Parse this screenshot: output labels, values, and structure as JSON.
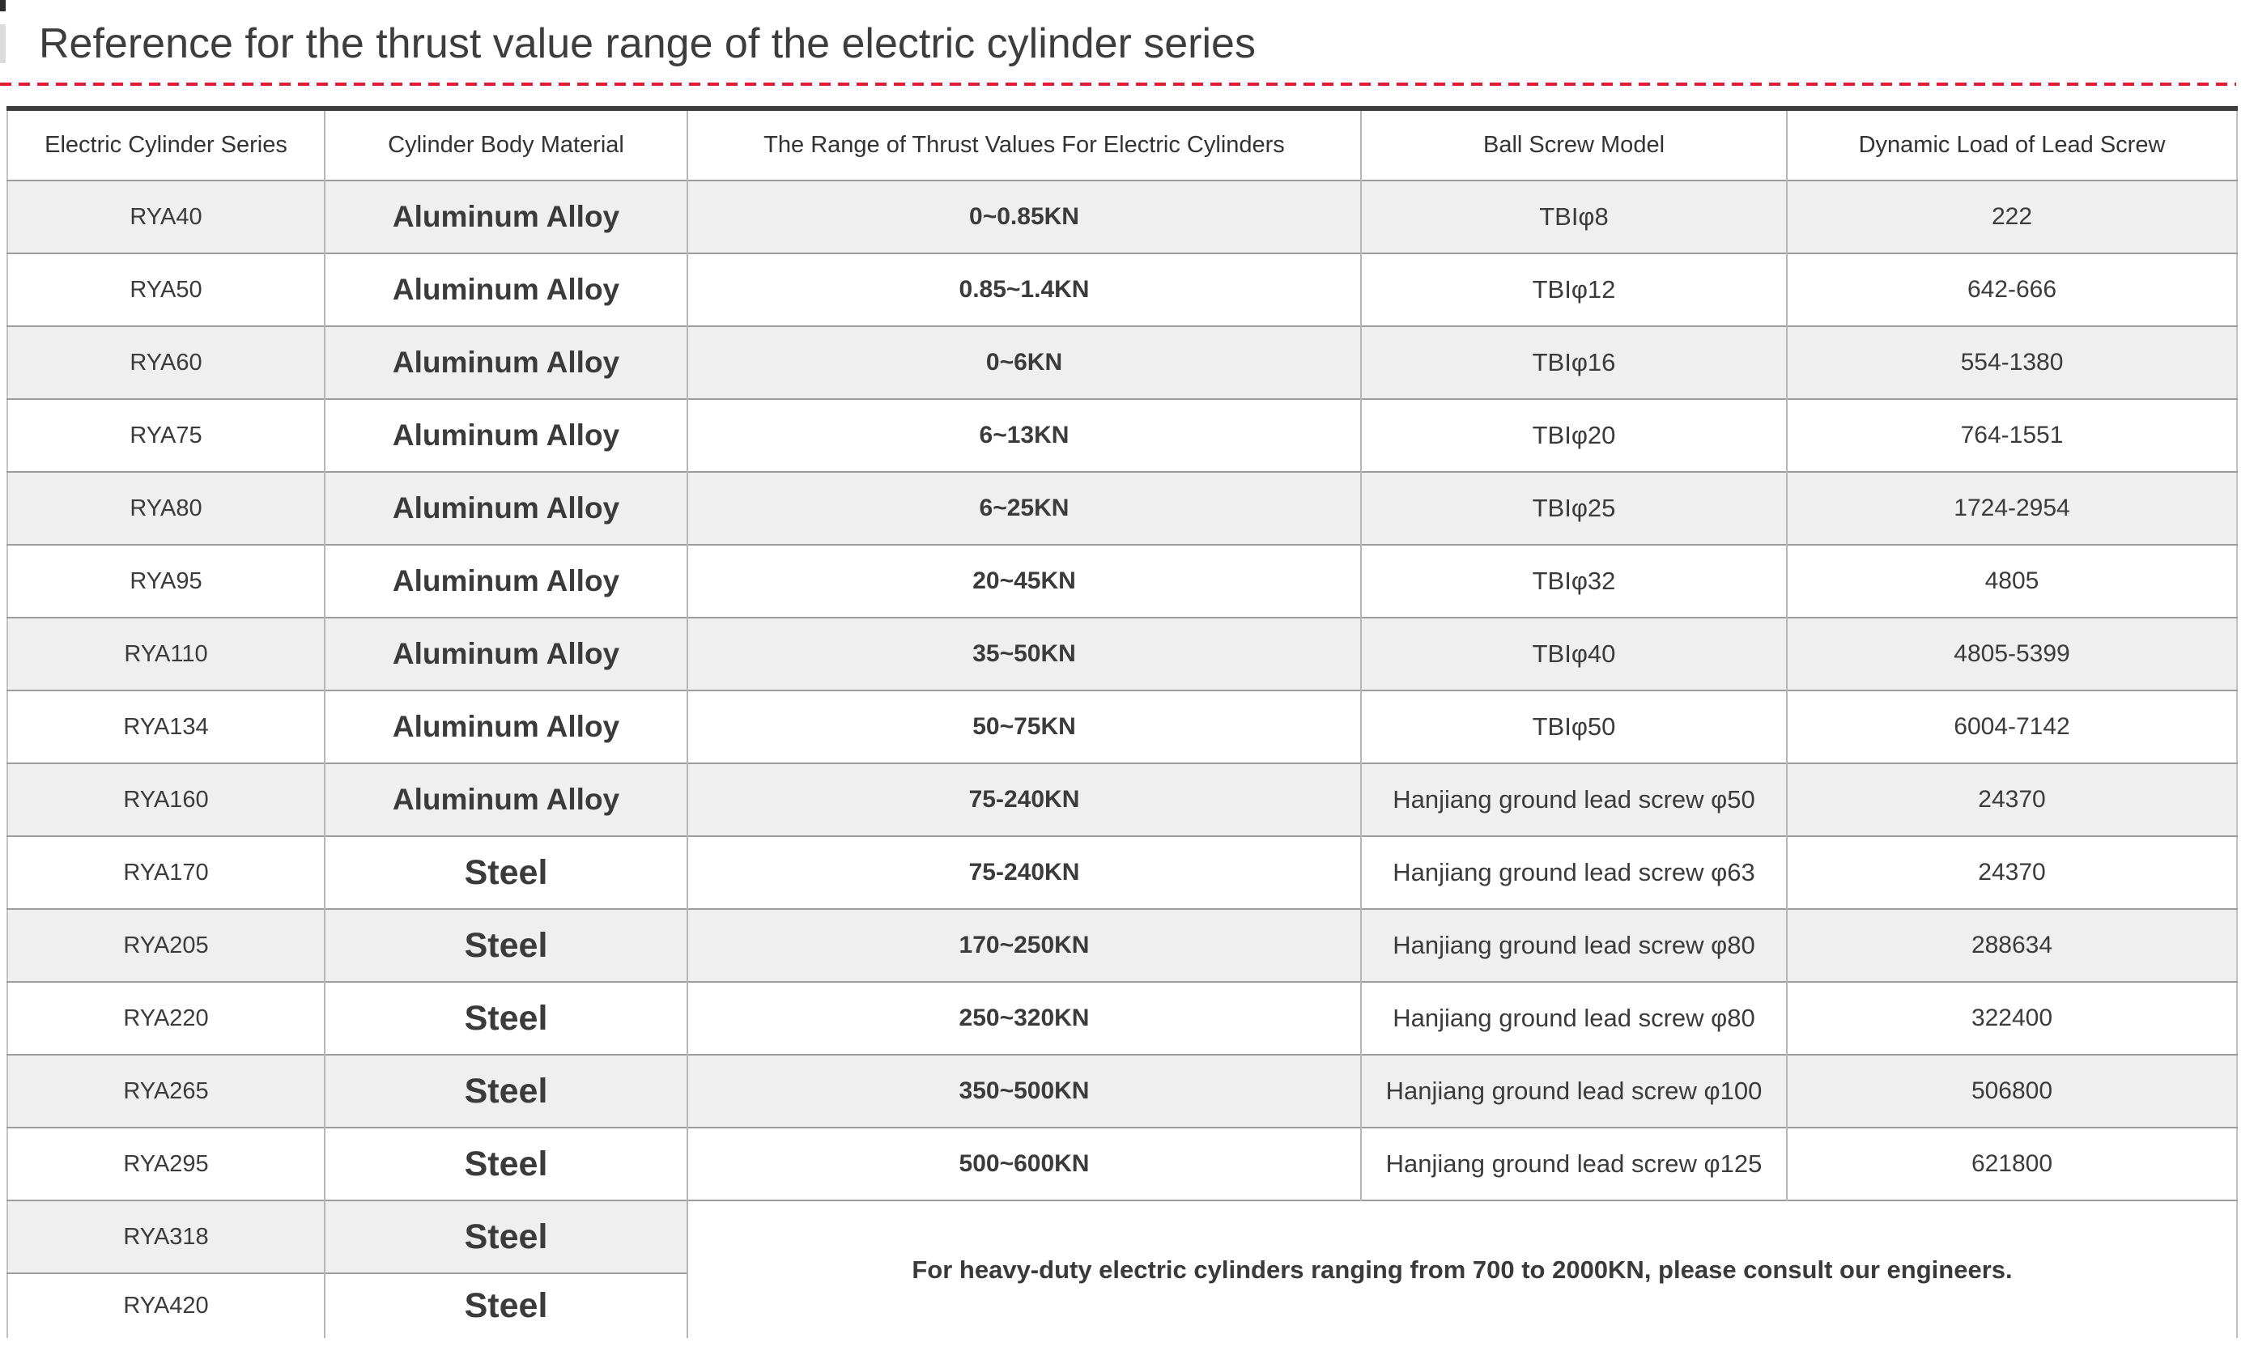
{
  "page_title": "Reference for the thrust value range of the electric cylinder series",
  "colors": {
    "accent_dash_red": "#e01b38",
    "row_stripe_gray": "#efefef",
    "table_top_border": "#3e3e3e",
    "text_dark_gray": "#3b3b3b"
  },
  "table": {
    "headers": [
      "Electric Cylinder Series",
      "Cylinder Body Material",
      "The Range of Thrust Values For Electric Cylinders",
      "Ball Screw Model",
      "Dynamic Load of Lead Screw"
    ],
    "rows": [
      {
        "series": "RYA40",
        "material": "Aluminum Alloy",
        "thrust": "0~0.85KN",
        "ball_screw": "TBIφ8",
        "dynamic_load": "222"
      },
      {
        "series": "RYA50",
        "material": "Aluminum Alloy",
        "thrust": "0.85~1.4KN",
        "ball_screw": "TBIφ12",
        "dynamic_load": "642-666"
      },
      {
        "series": "RYA60",
        "material": "Aluminum Alloy",
        "thrust": "0~6KN",
        "ball_screw": "TBIφ16",
        "dynamic_load": "554-1380"
      },
      {
        "series": "RYA75",
        "material": "Aluminum Alloy",
        "thrust": "6~13KN",
        "ball_screw": "TBIφ20",
        "dynamic_load": "764-1551"
      },
      {
        "series": "RYA80",
        "material": "Aluminum Alloy",
        "thrust": "6~25KN",
        "ball_screw": "TBIφ25",
        "dynamic_load": "1724-2954"
      },
      {
        "series": "RYA95",
        "material": "Aluminum Alloy",
        "thrust": "20~45KN",
        "ball_screw": "TBIφ32",
        "dynamic_load": "4805"
      },
      {
        "series": "RYA110",
        "material": "Aluminum Alloy",
        "thrust": "35~50KN",
        "ball_screw": "TBIφ40",
        "dynamic_load": "4805-5399"
      },
      {
        "series": "RYA134",
        "material": "Aluminum Alloy",
        "thrust": "50~75KN",
        "ball_screw": "TBIφ50",
        "dynamic_load": "6004-7142"
      },
      {
        "series": "RYA160",
        "material": "Aluminum Alloy",
        "thrust": "75-240KN",
        "ball_screw": "Hanjiang ground lead screw φ50",
        "dynamic_load": "24370"
      },
      {
        "series": "RYA170",
        "material": "Steel",
        "thrust": "75-240KN",
        "ball_screw": "Hanjiang ground lead screw φ63",
        "dynamic_load": "24370"
      },
      {
        "series": "RYA205",
        "material": "Steel",
        "thrust": "170~250KN",
        "ball_screw": "Hanjiang ground lead screw φ80",
        "dynamic_load": "288634"
      },
      {
        "series": "RYA220",
        "material": "Steel",
        "thrust": "250~320KN",
        "ball_screw": "Hanjiang ground lead screw φ80",
        "dynamic_load": "322400"
      },
      {
        "series": "RYA265",
        "material": "Steel",
        "thrust": "350~500KN",
        "ball_screw": "Hanjiang ground lead screw φ100",
        "dynamic_load": "506800"
      },
      {
        "series": "RYA295",
        "material": "Steel",
        "thrust": "500~600KN",
        "ball_screw": "Hanjiang ground lead screw φ125",
        "dynamic_load": "621800"
      }
    ],
    "tail_rows": [
      {
        "series": "RYA318",
        "material": "Steel"
      },
      {
        "series": "RYA420",
        "material": "Steel"
      }
    ],
    "note": "For heavy-duty electric cylinders ranging from 700 to 2000KN, please consult our engineers."
  }
}
